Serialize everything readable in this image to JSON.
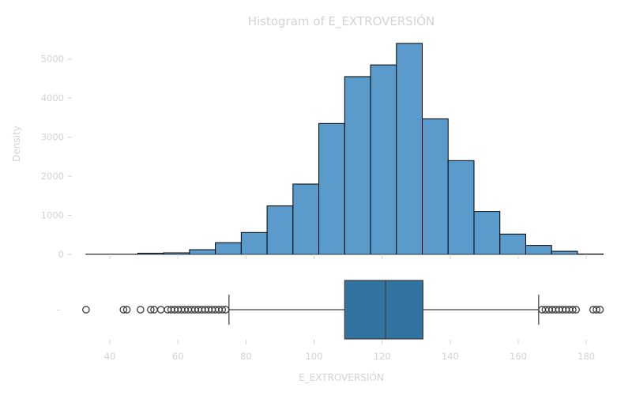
{
  "chart_data": [
    {
      "type": "bar",
      "title": "Histogram of E_EXTROVERSIÓN",
      "xlabel": "",
      "ylabel": "Density",
      "ylim": [
        0,
        5500
      ],
      "yticks": [
        "0",
        "1000",
        "2000",
        "3000",
        "4000",
        "5000"
      ],
      "bin_edges": [
        33,
        40.6,
        48.2,
        55.8,
        63.4,
        71,
        78.6,
        86.2,
        93.8,
        101.4,
        109,
        116.6,
        124.2,
        131.8,
        139.4,
        147,
        154.6,
        162.2,
        169.8,
        177.4,
        185
      ],
      "values": [
        5,
        5,
        30,
        40,
        120,
        300,
        560,
        1240,
        1800,
        3350,
        4550,
        4850,
        5400,
        3470,
        2400,
        1100,
        520,
        230,
        80,
        10
      ],
      "bar_color": "#5b9bcc",
      "edge_color": "#000000",
      "grid": false
    },
    {
      "type": "boxplot",
      "xlabel": "E_EXTROVERSIÓN",
      "ylabel": "",
      "xlim": [
        30,
        186
      ],
      "xticks": [
        "40",
        "60",
        "80",
        "100",
        "120",
        "140",
        "160",
        "180"
      ],
      "ytick": "–",
      "whisker_low": 75,
      "q1": 109,
      "median": 121,
      "q3": 132,
      "whisker_high": 166,
      "outliers": [
        33,
        44,
        45,
        49,
        52,
        53,
        55,
        57,
        58,
        59,
        60,
        61,
        62,
        63,
        64,
        65,
        66,
        67,
        68,
        69,
        70,
        71,
        72,
        73,
        74,
        167,
        168,
        169,
        170,
        171,
        172,
        173,
        174,
        175,
        176,
        177,
        182,
        183,
        184
      ],
      "box_color": "#3274a1"
    }
  ]
}
